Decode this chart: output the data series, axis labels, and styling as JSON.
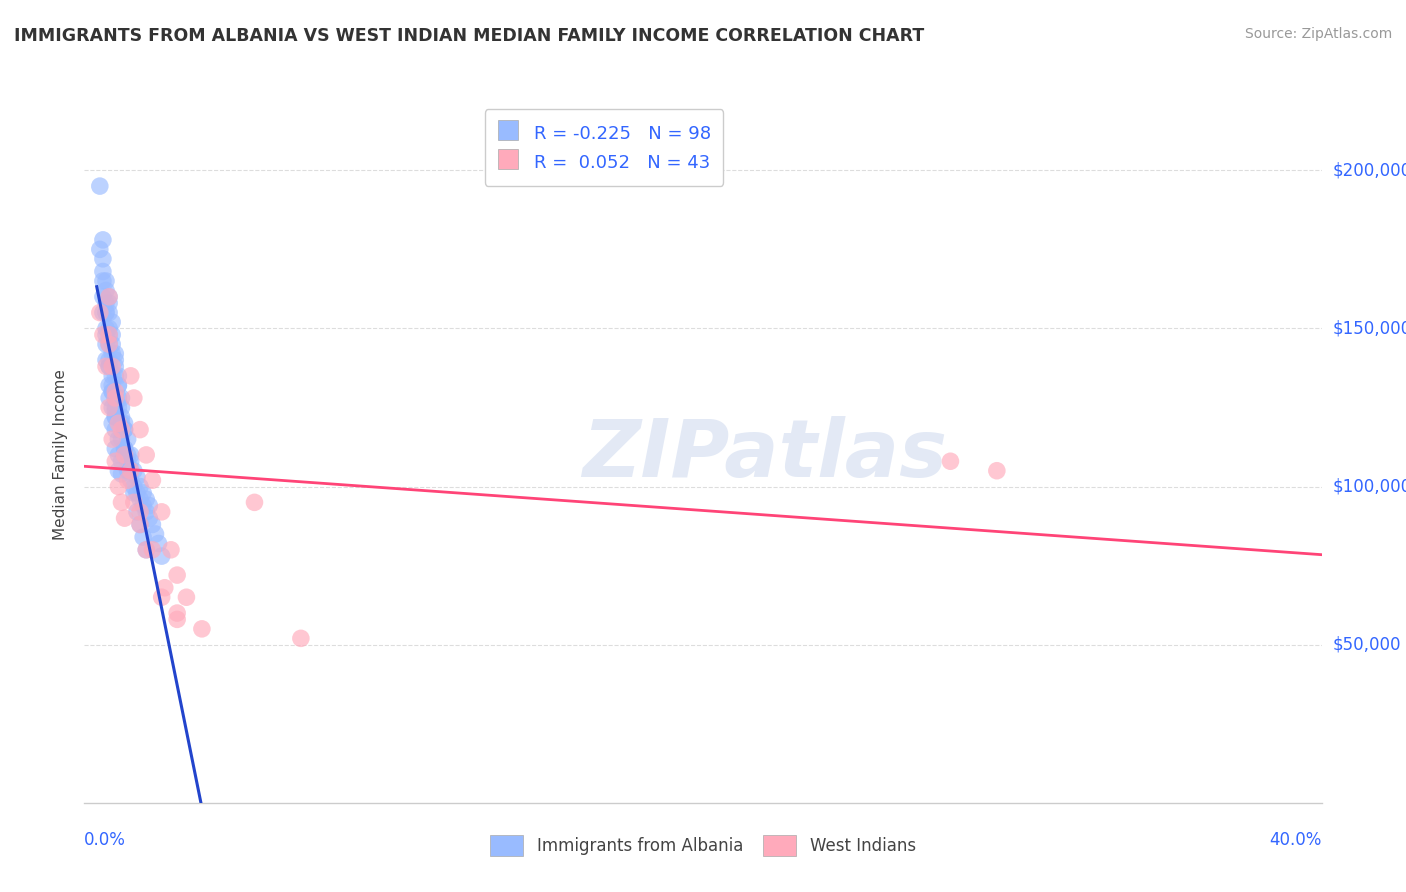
{
  "title": "IMMIGRANTS FROM ALBANIA VS WEST INDIAN MEDIAN FAMILY INCOME CORRELATION CHART",
  "source": "Source: ZipAtlas.com",
  "ylabel": "Median Family Income",
  "legend_blue_r": "-0.225",
  "legend_blue_n": "98",
  "legend_pink_r": "0.052",
  "legend_pink_n": "43",
  "legend_blue_label": "Immigrants from Albania",
  "legend_pink_label": "West Indians",
  "blue_color": "#99bbff",
  "pink_color": "#ffaabb",
  "blue_line_color": "#2244cc",
  "pink_line_color": "#ff4477",
  "blue_dash_color": "#aaccff",
  "xlim": [
    0.0,
    0.4
  ],
  "ylim": [
    0,
    220000
  ],
  "yticks": [
    50000,
    100000,
    150000,
    200000
  ],
  "ytick_labels": [
    "$50,000",
    "$100,000",
    "$150,000",
    "$200,000"
  ],
  "blue_x": [
    0.005,
    0.006,
    0.007,
    0.007,
    0.008,
    0.008,
    0.008,
    0.009,
    0.009,
    0.01,
    0.01,
    0.01,
    0.011,
    0.011,
    0.011,
    0.012,
    0.012,
    0.012,
    0.013,
    0.013,
    0.013,
    0.014,
    0.014,
    0.014,
    0.015,
    0.015,
    0.015,
    0.016,
    0.016,
    0.017,
    0.017,
    0.018,
    0.018,
    0.019,
    0.019,
    0.02,
    0.02,
    0.021,
    0.021,
    0.022,
    0.023,
    0.024,
    0.025,
    0.006,
    0.007,
    0.008,
    0.009,
    0.01,
    0.011,
    0.012,
    0.013,
    0.014,
    0.015,
    0.016,
    0.017,
    0.018,
    0.019,
    0.02,
    0.006,
    0.007,
    0.008,
    0.009,
    0.01,
    0.011,
    0.012,
    0.013,
    0.006,
    0.007,
    0.008,
    0.009,
    0.01,
    0.011,
    0.007,
    0.008,
    0.009,
    0.01,
    0.007,
    0.008,
    0.009,
    0.01,
    0.011,
    0.012,
    0.008,
    0.009,
    0.01,
    0.011,
    0.006,
    0.007,
    0.008,
    0.009,
    0.01,
    0.005,
    0.006,
    0.007,
    0.008,
    0.009,
    0.01,
    0.012
  ],
  "blue_y": [
    195000,
    178000,
    165000,
    155000,
    160000,
    148000,
    158000,
    145000,
    152000,
    138000,
    128000,
    142000,
    132000,
    125000,
    135000,
    122000,
    115000,
    128000,
    118000,
    112000,
    120000,
    108000,
    115000,
    105000,
    110000,
    102000,
    108000,
    100000,
    105000,
    98000,
    103000,
    96000,
    100000,
    94000,
    98000,
    92000,
    96000,
    90000,
    94000,
    88000,
    85000,
    82000,
    78000,
    172000,
    162000,
    155000,
    148000,
    140000,
    132000,
    125000,
    118000,
    110000,
    105000,
    98000,
    92000,
    88000,
    84000,
    80000,
    168000,
    158000,
    150000,
    142000,
    135000,
    128000,
    120000,
    112000,
    155000,
    148000,
    138000,
    130000,
    122000,
    115000,
    145000,
    138000,
    130000,
    122000,
    140000,
    132000,
    125000,
    118000,
    110000,
    104000,
    128000,
    120000,
    112000,
    105000,
    160000,
    150000,
    140000,
    132000,
    124000,
    175000,
    165000,
    155000,
    145000,
    135000,
    125000,
    108000
  ],
  "pink_x": [
    0.005,
    0.006,
    0.007,
    0.008,
    0.009,
    0.01,
    0.011,
    0.012,
    0.013,
    0.015,
    0.016,
    0.018,
    0.02,
    0.022,
    0.025,
    0.028,
    0.03,
    0.033,
    0.038,
    0.008,
    0.01,
    0.012,
    0.015,
    0.018,
    0.022,
    0.026,
    0.03,
    0.008,
    0.01,
    0.013,
    0.016,
    0.02,
    0.025,
    0.28,
    0.295,
    0.009,
    0.011,
    0.014,
    0.018,
    0.03,
    0.008,
    0.055,
    0.07
  ],
  "pink_y": [
    155000,
    148000,
    138000,
    125000,
    115000,
    108000,
    100000,
    95000,
    90000,
    135000,
    128000,
    118000,
    110000,
    102000,
    92000,
    80000,
    72000,
    65000,
    55000,
    148000,
    130000,
    118000,
    105000,
    92000,
    80000,
    68000,
    58000,
    145000,
    128000,
    110000,
    95000,
    80000,
    65000,
    108000,
    105000,
    138000,
    120000,
    102000,
    88000,
    60000,
    160000,
    95000,
    52000
  ]
}
